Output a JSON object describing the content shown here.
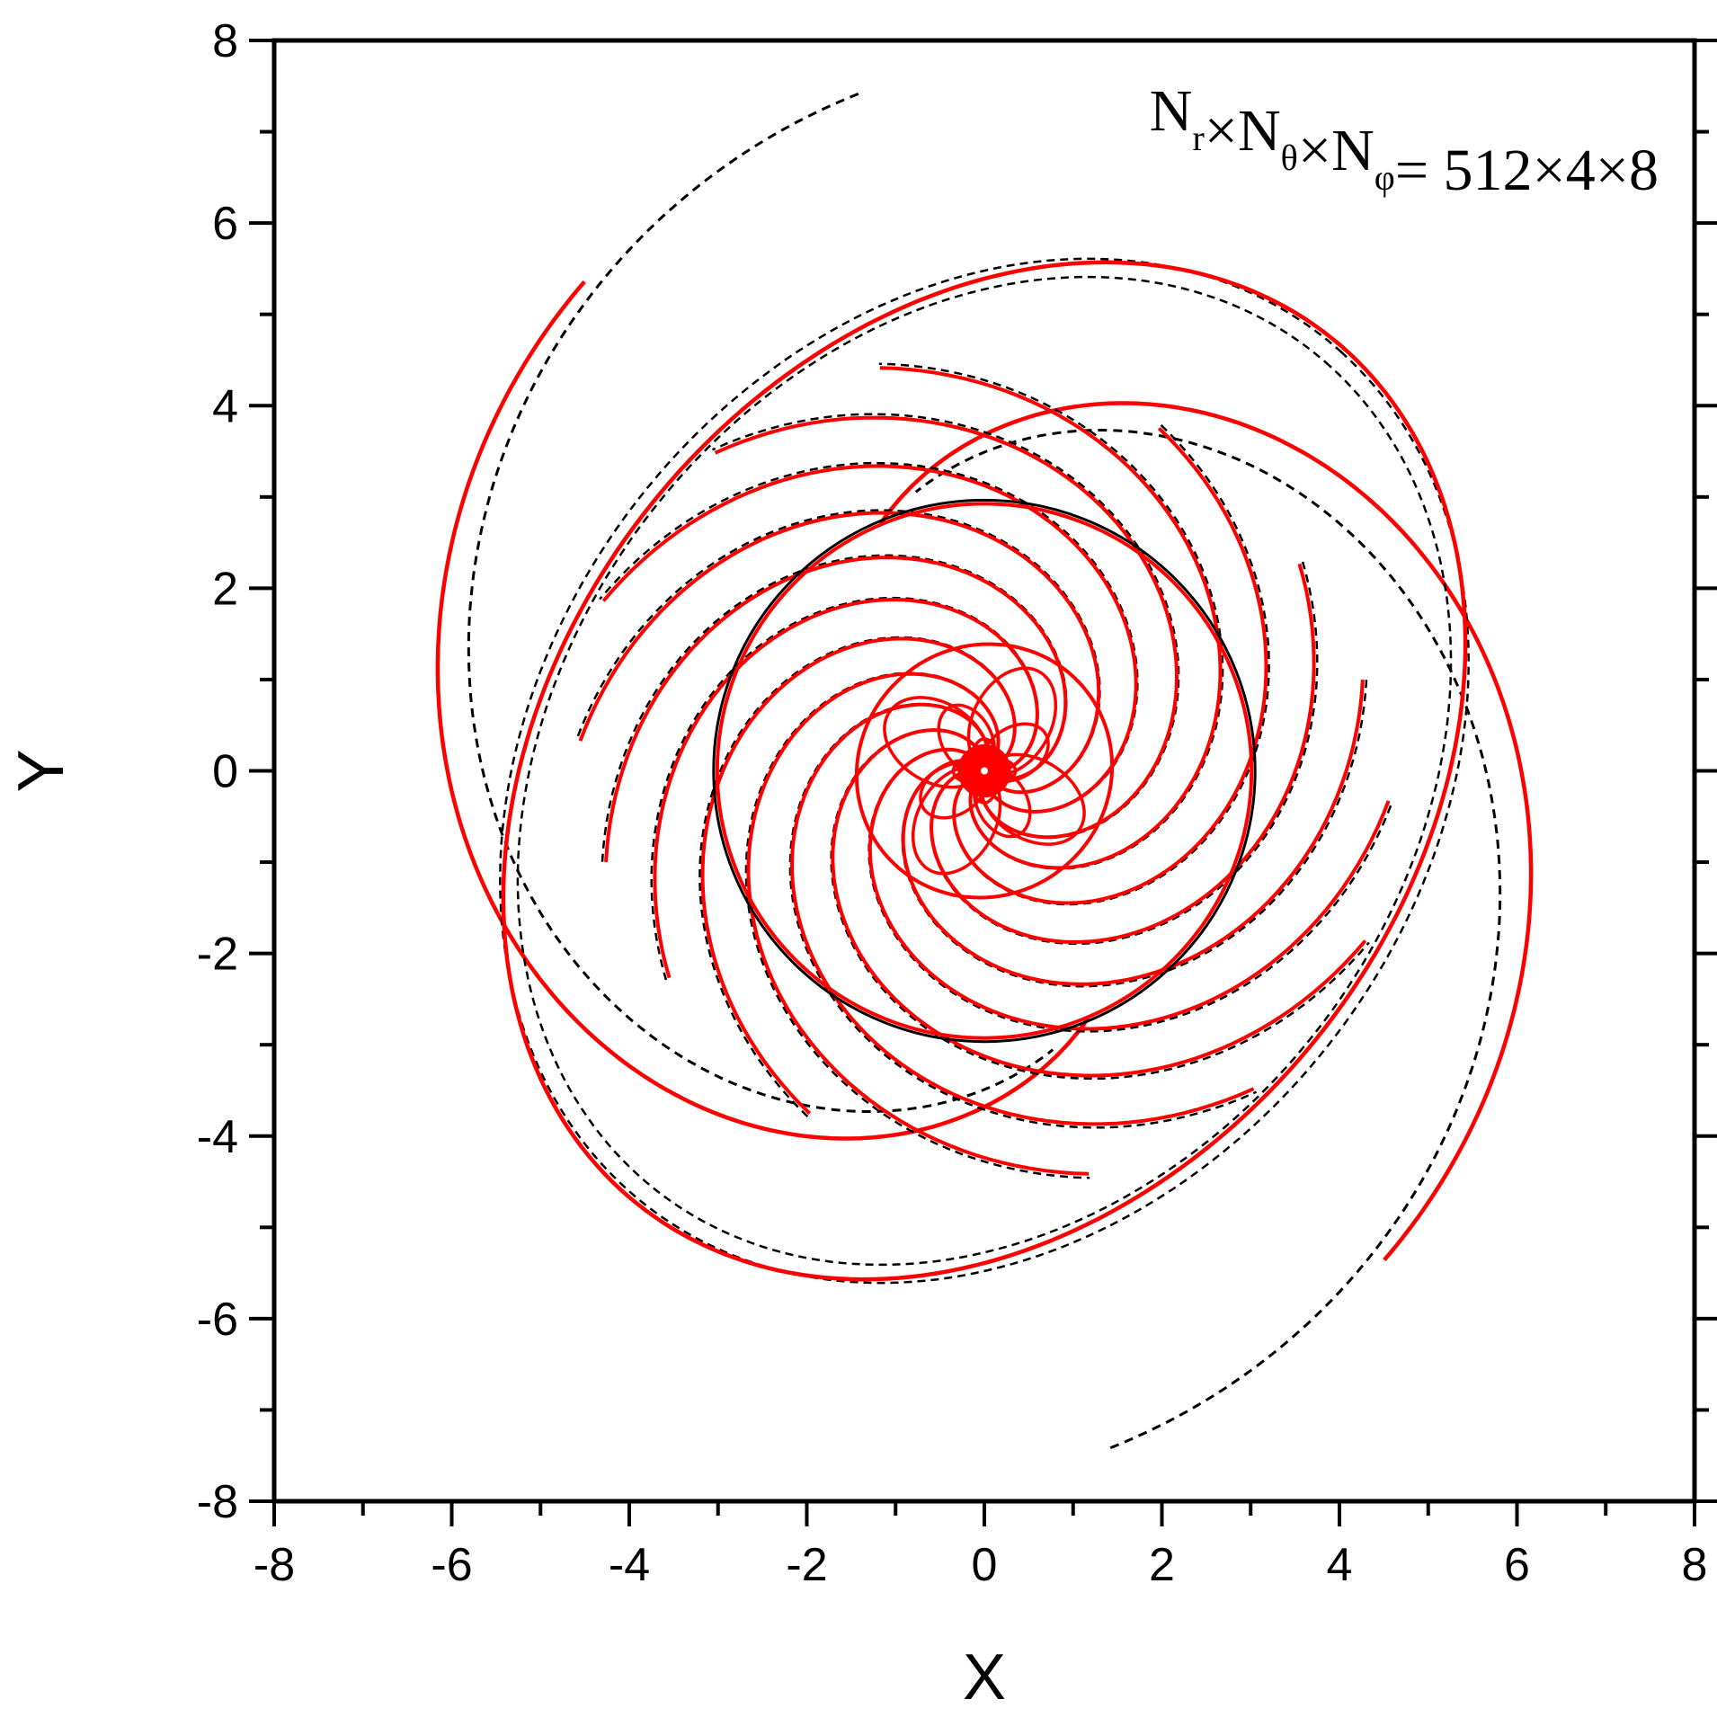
{
  "chart_data": {
    "type": "line",
    "title": "",
    "xlabel": "X",
    "ylabel": "Y",
    "xlim": [
      -8,
      8
    ],
    "ylim": [
      -8,
      8
    ],
    "x_ticks": [
      "-8",
      "-6",
      "-4",
      "-2",
      "0",
      "2",
      "4",
      "6",
      "8"
    ],
    "y_ticks": [
      "-8",
      "-6",
      "-4",
      "-2",
      "0",
      "2",
      "4",
      "6",
      "8"
    ],
    "grid": false,
    "legend": "none",
    "annotation": {
      "parts": [
        {
          "text": "N",
          "sub": "r"
        },
        {
          "text": "×N",
          "sub": "θ"
        },
        {
          "text": "×N",
          "sub": "φ"
        },
        {
          "text": "= 512×4×8",
          "sub": ""
        }
      ],
      "position": "top-right"
    },
    "colors": {
      "red_series": "#ff0000",
      "black_series": "#000000",
      "axes": "#000000"
    },
    "series": [
      {
        "style": "solid",
        "color": "#ff0000",
        "description_points": {
          "outer_arm_a": [
            [
              -4.5,
              5.4
            ],
            [
              -5.4,
              4.3
            ],
            [
              -6.0,
              2.6
            ],
            [
              -6.1,
              0.6
            ],
            [
              -5.9,
              -1.2
            ],
            [
              -5.3,
              -2.6
            ],
            [
              -4.3,
              -3.7
            ],
            [
              -2.9,
              -4.4
            ],
            [
              -1.0,
              -4.6
            ],
            [
              1.0,
              -4.4
            ],
            [
              2.3,
              -3.9
            ],
            [
              3.0,
              -3.0
            ]
          ],
          "outer_arm_b": [
            [
              4.5,
              -5.4
            ],
            [
              5.4,
              -4.3
            ],
            [
              6.0,
              -2.6
            ],
            [
              6.1,
              -0.6
            ],
            [
              5.9,
              1.2
            ],
            [
              5.3,
              2.6
            ],
            [
              4.3,
              3.7
            ],
            [
              2.9,
              4.4
            ],
            [
              1.0,
              4.6
            ],
            [
              -1.0,
              4.4
            ],
            [
              -2.3,
              3.9
            ],
            [
              -3.0,
              3.0
            ]
          ],
          "inner_boundary_radius": 3.05,
          "core_boundary_radius": 1.45
        }
      },
      {
        "style": "dashed",
        "color": "#000000",
        "arm_a_end": [
          -1.4,
          7.4
        ],
        "arm_b_end": [
          1.4,
          -7.4
        ]
      }
    ]
  }
}
